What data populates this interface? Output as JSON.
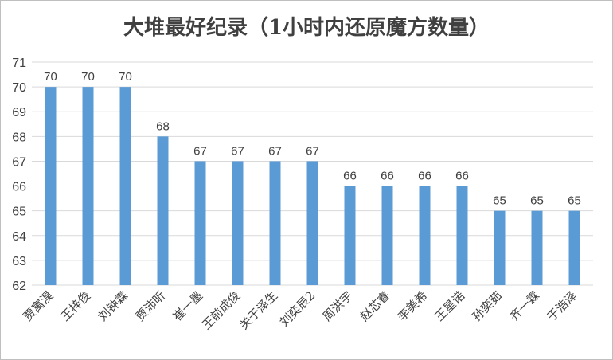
{
  "colors": {
    "bar": "#5b9bd5",
    "grid": "#d9d9d9",
    "text": "#404040"
  },
  "chart_data": {
    "type": "bar",
    "title": "大堆最好纪录（1小时内还原魔方数量）",
    "xlabel": "",
    "ylabel": "",
    "ylim": [
      62,
      71
    ],
    "yticks": [
      62,
      63,
      64,
      65,
      66,
      67,
      68,
      69,
      70,
      71
    ],
    "grid": true,
    "legend": "none",
    "categories": [
      "贾寓淏",
      "王梓俊",
      "刘钟霖",
      "贾沛昕",
      "崔一墨",
      "王前成俊",
      "关于泽生",
      "刘奕辰2",
      "周洪宇",
      "赵芯睿",
      "李美希",
      "王星诺",
      "孙奕茹",
      "齐一霖",
      "于浩泽"
    ],
    "values": [
      70,
      70,
      70,
      68,
      67,
      67,
      67,
      67,
      66,
      66,
      66,
      66,
      65,
      65,
      65
    ]
  }
}
